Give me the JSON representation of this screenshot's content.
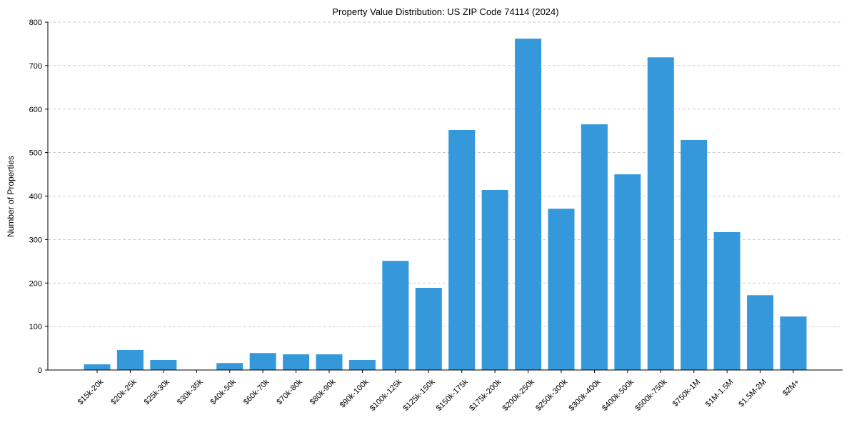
{
  "chart_data": {
    "type": "bar",
    "title": "Property Value Distribution: US ZIP Code 74114 (2024)",
    "xlabel": "",
    "ylabel": "Number of Properties",
    "ylim": [
      0,
      800
    ],
    "yticks": [
      0,
      100,
      200,
      300,
      400,
      500,
      600,
      700,
      800
    ],
    "grid": "y-dashed",
    "color": "#3498db",
    "categories": [
      "$15k-20k",
      "$20k-25k",
      "$25k-30k",
      "$30k-35k",
      "$40k-50k",
      "$60k-70k",
      "$70k-80k",
      "$80k-90k",
      "$90k-100k",
      "$100k-125k",
      "$125k-150k",
      "$150k-175k",
      "$175k-200k",
      "$200k-250k",
      "$250k-300k",
      "$300k-400k",
      "$400k-500k",
      "$500k-750k",
      "$750k-1M",
      "$1M-1.5M",
      "$1.5M-2M",
      "$2M+"
    ],
    "values": [
      13,
      46,
      23,
      0,
      16,
      39,
      36,
      36,
      23,
      251,
      189,
      552,
      414,
      762,
      371,
      565,
      450,
      719,
      529,
      317,
      172,
      123
    ]
  }
}
